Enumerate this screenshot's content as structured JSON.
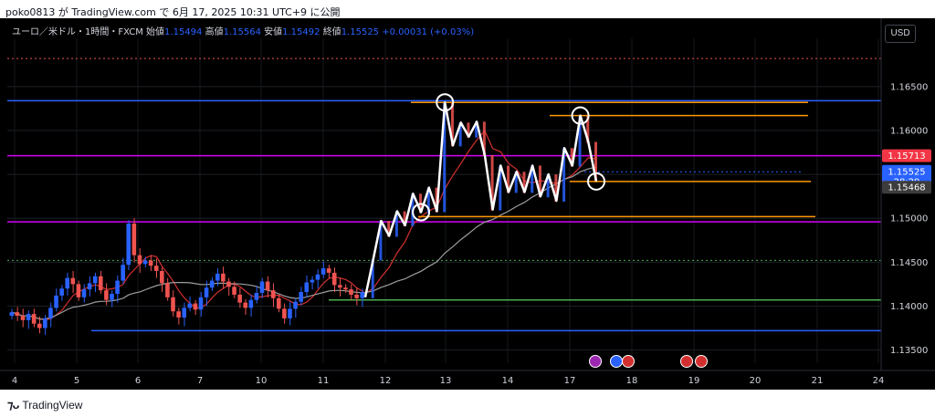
{
  "header": {
    "publish_text": "poko0813 が TradingView.com で 6月 17, 2025 10:31 UTC+9 に公開"
  },
  "legend": {
    "symbol": "ユーロ／米ドル・1時間・FXCM",
    "open_label": "始値",
    "open_value": "1.15494",
    "high_label": "高値",
    "high_value": "1.15564",
    "low_label": "安値",
    "low_value": "1.15492",
    "close_label": "終値",
    "close_value": "1.15525",
    "change": "+0.00031 (+0.03%)"
  },
  "currency_button": "USD",
  "footer": {
    "brand": "TradingView"
  },
  "colors": {
    "up": "#2962ff",
    "down": "#ef5350",
    "wave": "#ffffff",
    "level_blue": "#2962ff",
    "level_magenta": "#d500f9",
    "level_orange": "#ff9800",
    "level_green": "#4caf50",
    "ma_fast": "#d32f2f",
    "ma_slow": "#9e9e9e"
  },
  "chart_data": {
    "type": "candlestick",
    "symbol": "EURUSD 1H",
    "ylim": [
      1.1335,
      1.1705
    ],
    "y_ticks": [
      "1.16500",
      "1.16000",
      "1.15500",
      "1.15000",
      "1.14500",
      "1.14000",
      "1.13500"
    ],
    "x_ticks": [
      "4",
      "5",
      "6",
      "7",
      "10",
      "11",
      "12",
      "13",
      "14",
      "17",
      "18",
      "19",
      "20",
      "21",
      "24"
    ],
    "price_labels": {
      "red_level": "1.15713",
      "current": "1.15525",
      "countdown": "28:29",
      "ma": "1.15468"
    },
    "horizontal_levels": [
      {
        "price": 1.1634,
        "color": "blue",
        "style": "solid"
      },
      {
        "price": 1.15713,
        "color": "magenta",
        "style": "solid"
      },
      {
        "price": 1.1496,
        "color": "magenta",
        "style": "solid"
      },
      {
        "price": 1.1372,
        "color": "blue",
        "style": "solid"
      },
      {
        "price": 1.1682,
        "color": "red",
        "style": "dotted"
      },
      {
        "price": 1.1553,
        "color": "blue",
        "style": "dotted"
      },
      {
        "price": 1.1452,
        "color": "green",
        "style": "dotted"
      },
      {
        "price": 1.1407,
        "color": "green",
        "style": "solid"
      }
    ],
    "pattern_lines": [
      {
        "price": 1.1632,
        "color": "orange"
      },
      {
        "price": 1.1617,
        "color": "orange"
      },
      {
        "price": 1.1542,
        "color": "orange"
      },
      {
        "price": 1.1502,
        "color": "orange"
      }
    ],
    "wave_points": [
      1.141,
      1.1453,
      1.1497,
      1.148,
      1.1508,
      1.1492,
      1.1528,
      1.1507,
      1.1535,
      1.1508,
      1.1632,
      1.1583,
      1.1609,
      1.1593,
      1.161,
      1.1572,
      1.151,
      1.156,
      1.153,
      1.1553,
      1.153,
      1.156,
      1.1525,
      1.155,
      1.152,
      1.158,
      1.156,
      1.1617,
      1.1587,
      1.1542
    ],
    "circled_points": [
      1.1632,
      1.1617,
      1.1507,
      1.1542
    ],
    "candles_close": [
      1.1393,
      1.1389,
      1.1384,
      1.1391,
      1.138,
      1.1375,
      1.1386,
      1.1398,
      1.1412,
      1.142,
      1.1432,
      1.1425,
      1.141,
      1.1419,
      1.1426,
      1.1434,
      1.1418,
      1.1407,
      1.1414,
      1.1429,
      1.1447,
      1.1494,
      1.1458,
      1.1448,
      1.1452,
      1.1446,
      1.144,
      1.1426,
      1.141,
      1.1394,
      1.1387,
      1.1398,
      1.1403,
      1.1396,
      1.141,
      1.1421,
      1.1429,
      1.1437,
      1.1428,
      1.1422,
      1.1413,
      1.1404,
      1.1398,
      1.1407,
      1.1415,
      1.1428,
      1.1418,
      1.1409,
      1.1397,
      1.1386,
      1.1397,
      1.1405,
      1.1416,
      1.1427,
      1.143,
      1.1436,
      1.1443,
      1.1438,
      1.1424,
      1.1421,
      1.1419,
      1.1413,
      1.1409,
      1.1416
    ],
    "events": [
      "lightning-icon",
      "globe-icon",
      "us-flag-icon",
      "us-flag-icon",
      "us-flag-icon"
    ]
  }
}
